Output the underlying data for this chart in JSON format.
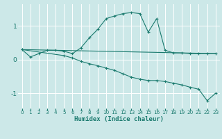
{
  "xlabel": "Humidex (Indice chaleur)",
  "bg_color": "#cce8e8",
  "grid_color": "#ffffff",
  "line_color": "#1a7a6e",
  "xlim": [
    -0.5,
    23.5
  ],
  "ylim": [
    -1.45,
    1.65
  ],
  "yticks": [
    -1,
    0,
    1
  ],
  "xticks": [
    0,
    1,
    2,
    3,
    4,
    5,
    6,
    7,
    8,
    9,
    10,
    11,
    12,
    13,
    14,
    15,
    16,
    17,
    18,
    19,
    20,
    21,
    22,
    23
  ],
  "series": [
    {
      "x": [
        0,
        1,
        2,
        3,
        4,
        5,
        6,
        7,
        8,
        9,
        10,
        11,
        12,
        13,
        14,
        15,
        16,
        17,
        18,
        19,
        20,
        21,
        22,
        23
      ],
      "y": [
        0.3,
        0.08,
        0.18,
        0.28,
        0.28,
        0.25,
        0.18,
        0.35,
        0.65,
        0.9,
        1.22,
        1.3,
        1.37,
        1.4,
        1.37,
        0.82,
        1.22,
        0.28,
        0.2,
        0.2,
        0.18,
        0.18,
        0.18,
        0.18
      ],
      "has_markers": true
    },
    {
      "x": [
        0,
        23
      ],
      "y": [
        0.3,
        0.18
      ],
      "has_markers": false
    },
    {
      "x": [
        0,
        5,
        6,
        7,
        8,
        9,
        10,
        11,
        12,
        13,
        14,
        15,
        16,
        17,
        18,
        19,
        20,
        21,
        22,
        23
      ],
      "y": [
        0.3,
        0.12,
        0.05,
        -0.05,
        -0.12,
        -0.18,
        -0.25,
        -0.32,
        -0.42,
        -0.52,
        -0.58,
        -0.62,
        -0.62,
        -0.65,
        -0.7,
        -0.75,
        -0.82,
        -0.88,
        -1.22,
        -1.0
      ],
      "has_markers": true
    }
  ]
}
